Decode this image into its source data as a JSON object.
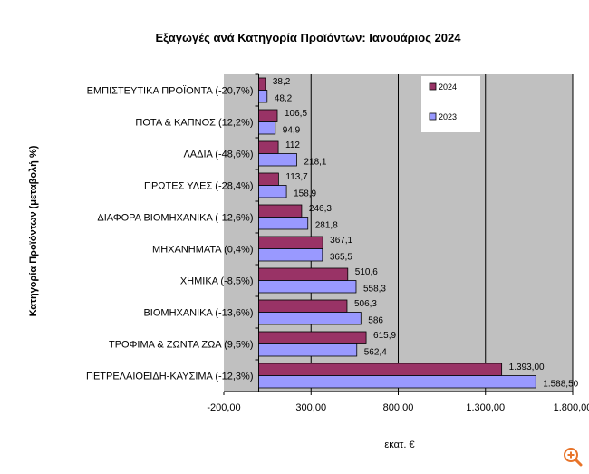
{
  "chart_data": {
    "type": "bar",
    "orientation": "horizontal",
    "title": "Εξαγωγές ανά Κατηγορία Προϊόντων: Ιανουάριος 2024",
    "xlabel": "εκατ. €",
    "ylabel": "Κατηγορία Προϊόντων (μεταβολή %)",
    "xlim": [
      -200,
      1800
    ],
    "xticks": [
      -200,
      300,
      800,
      1300,
      1800
    ],
    "xtick_labels": [
      "-200,00",
      "300,00",
      "800,00",
      "1.300,00",
      "1.800,00"
    ],
    "grid": "vertical",
    "plot_background": "#c0c0c0",
    "legend_position": "top-right",
    "categories": [
      "ΕΜΠΙΣΤΕΥΤΙΚΑ ΠΡΟΪΟΝΤΑ (-20,7%)",
      "ΠΟΤΑ & ΚΑΠΝΟΣ (12,2%)",
      "ΛΑΔΙΑ (-48,6%)",
      "ΠΡΩΤΕΣ ΥΛΕΣ (-28,4%)",
      "ΔΙΑΦΟΡΑ ΒΙΟΜΗΧΑΝΙΚΑ (-12,6%)",
      "ΜΗΧΑΝΗΜΑΤΑ (0,4%)",
      "ΧΗΜΙΚΑ (-8,5%)",
      "ΒΙΟΜΗΧΑΝΙΚΑ (-13,6%)",
      "ΤΡΟΦΙΜΑ & ΖΩΝΤΑ ΖΩΑ (9,5%)",
      "ΠΕΤΡΕΛΑΙΟΕΙΔΗ-ΚΑΥΣΙΜΑ (-12,3%)"
    ],
    "series": [
      {
        "name": "2024",
        "color": "#993366",
        "values": [
          38.2,
          106.5,
          112,
          113.7,
          246.3,
          367.1,
          510.6,
          506.3,
          615.9,
          1393.0
        ],
        "labels": [
          "38,2",
          "106,5",
          "112",
          "113,7",
          "246,3",
          "367,1",
          "510,6",
          "506,3",
          "615,9",
          "1.393,00"
        ]
      },
      {
        "name": "2023",
        "color": "#9999ff",
        "values": [
          48.2,
          94.9,
          218.1,
          158.9,
          281.8,
          365.5,
          558.3,
          586,
          562.4,
          1588.5
        ],
        "labels": [
          "48,2",
          "94,9",
          "218,1",
          "158,9",
          "281,8",
          "365,5",
          "558,3",
          "586",
          "562,4",
          "1.588,50"
        ]
      }
    ]
  },
  "ui": {
    "zoom_icon": "zoom-in-icon",
    "zoom_color": "#e8742a"
  }
}
